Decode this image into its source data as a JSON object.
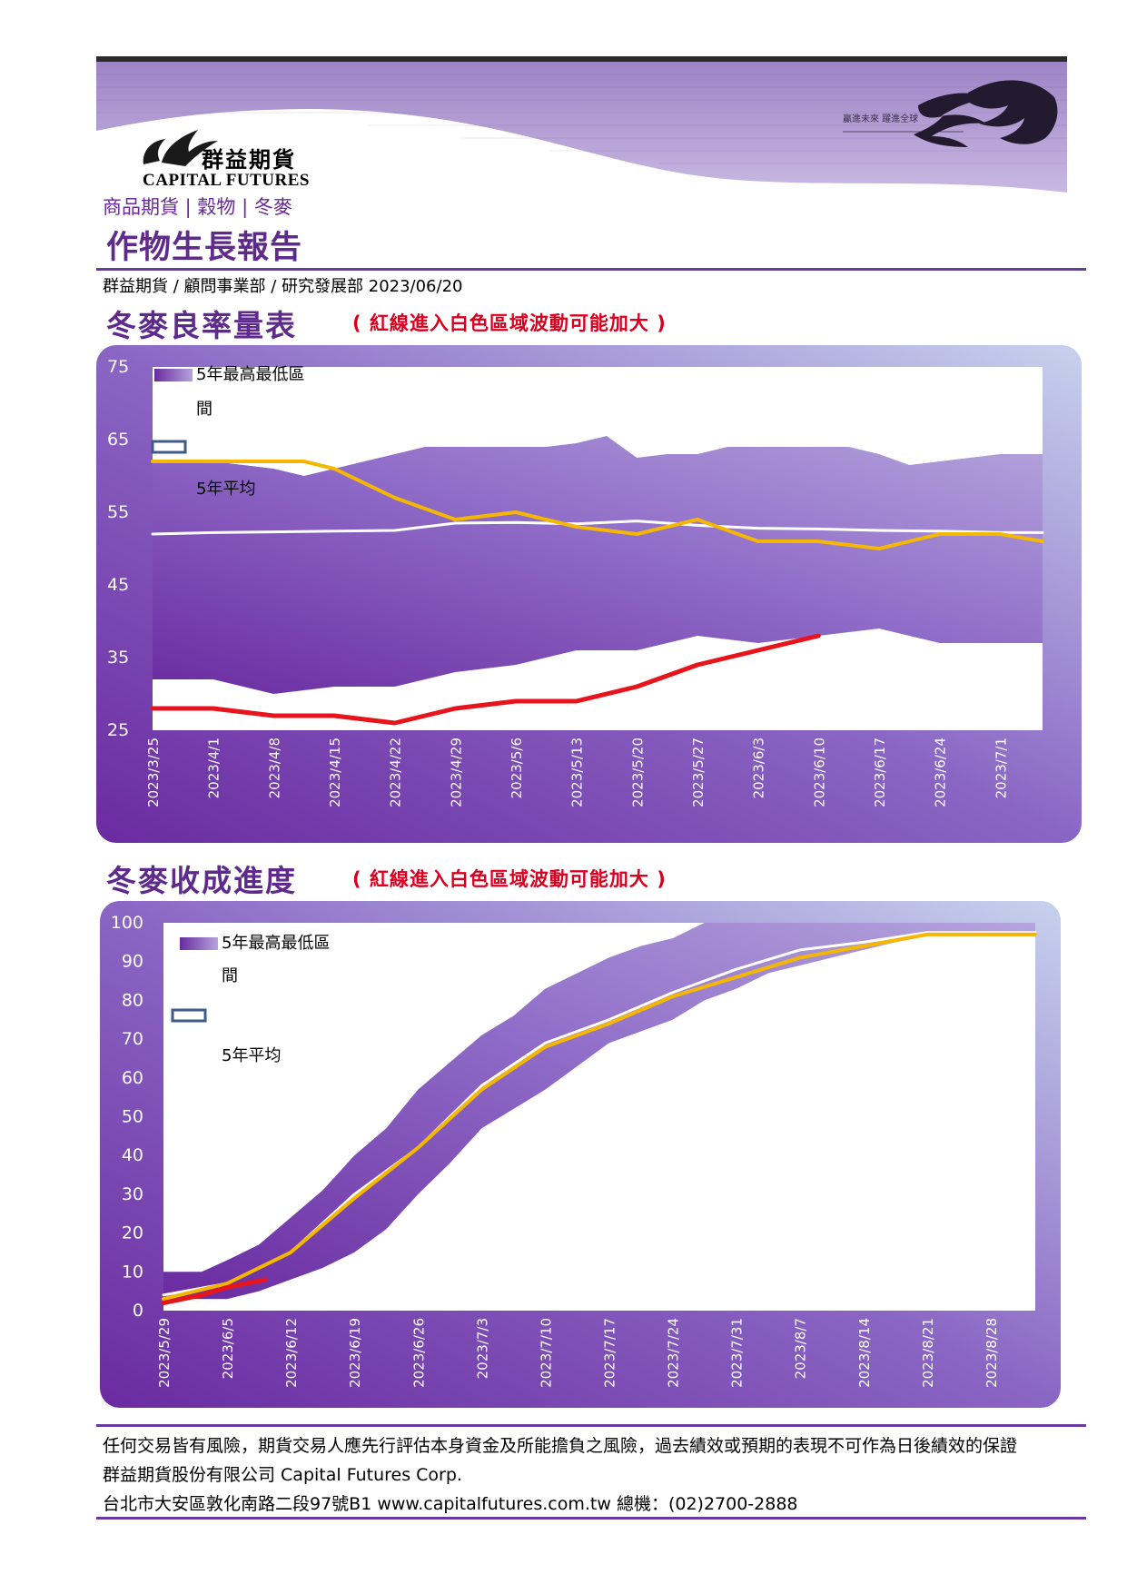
{
  "header": {
    "logo_cn": "群益期貨",
    "logo_en": "CAPITAL FUTURES",
    "banner_slogan_line1": "贏進未來 躍進全球",
    "category": "商品期貨 | 穀物 | 冬麥",
    "title": "作物生長報告",
    "byline": "群益期貨 / 顧問事業部 / 研究發展部   2023/06/20"
  },
  "colors": {
    "brand_purple": "#5e2a8c",
    "band_purple": "#8a66c4",
    "avg_line": "#ffffff",
    "yellow_line": "#f5b800",
    "red_line": "#e8141c",
    "note_red": "#d8001e"
  },
  "sections": [
    {
      "title": "冬麥良率量表",
      "note": "( 紅線進入白色區域波動可能加大 )"
    },
    {
      "title": "冬麥收成進度",
      "note": "( 紅線進入白色區域波動可能加大 )"
    }
  ],
  "chart_data": [
    {
      "type": "area",
      "legend": [
        "5年最高最低區間",
        "5年平均"
      ],
      "ylim": [
        25,
        75
      ],
      "yticks": [
        25,
        35,
        45,
        55,
        65,
        75
      ],
      "x_labels": [
        "2023/3/25",
        "2023/4/1",
        "2023/4/8",
        "2023/4/15",
        "2023/4/22",
        "2023/4/29",
        "2023/5/6",
        "2023/5/13",
        "2023/5/20",
        "2023/5/27",
        "2023/6/3",
        "2023/6/10",
        "2023/6/17",
        "2023/6/24",
        "2023/7/1"
      ],
      "x_weeks": [
        0,
        0.7,
        1,
        1.5,
        2,
        2.5,
        3,
        3.5,
        4,
        4.5,
        5,
        5.5,
        6,
        6.5,
        7,
        7.5,
        8,
        8.5,
        9,
        9.5,
        10,
        10.5,
        11,
        11.5,
        12,
        12.5,
        13,
        13.5,
        14,
        14.7
      ],
      "band_high": [
        62,
        62,
        62,
        61.5,
        61,
        60,
        61,
        62,
        63,
        64,
        64,
        64,
        64,
        64,
        64.5,
        65.5,
        62.5,
        63,
        63,
        64,
        64,
        64,
        64,
        64,
        63,
        61.5,
        62,
        62.5,
        63,
        63
      ],
      "band_low": [
        32,
        32,
        32,
        31,
        30,
        30.5,
        31,
        31,
        31,
        32,
        33,
        33.5,
        34,
        35,
        36,
        36,
        36,
        37,
        38,
        37.5,
        37,
        37.5,
        38,
        38.5,
        39,
        38,
        37,
        37,
        37,
        37
      ],
      "series": [
        {
          "name": "5年平均",
          "color": "#ffffff",
          "x": [
            0,
            1,
            2,
            3,
            4,
            5,
            6,
            7,
            8,
            9,
            10,
            11,
            12,
            13,
            14,
            14.7
          ],
          "values": [
            52,
            52.2,
            52.3,
            52.4,
            52.5,
            53.5,
            53.6,
            53.4,
            53.8,
            53.2,
            52.8,
            52.7,
            52.5,
            52.4,
            52.2,
            52.2
          ]
        },
        {
          "x": [
            0,
            1,
            2,
            2.5,
            3,
            4,
            5,
            6,
            7,
            8,
            9,
            10,
            11,
            12,
            13,
            14,
            14.7
          ],
          "values": [
            62,
            62,
            62,
            62,
            61,
            57,
            54,
            55,
            53,
            52,
            54,
            51,
            51,
            50,
            52,
            52,
            51
          ]
        },
        {
          "x": [
            0,
            1,
            2,
            3,
            4,
            5,
            6,
            7,
            8,
            9,
            10,
            11
          ],
          "values": [
            28,
            28,
            27,
            27,
            26,
            28,
            29,
            29,
            31,
            34,
            36,
            38
          ]
        }
      ]
    },
    {
      "type": "area",
      "legend": [
        "5年最高最低區間",
        "5年平均"
      ],
      "ylim": [
        0,
        100
      ],
      "yticks": [
        0,
        10,
        20,
        30,
        40,
        50,
        60,
        70,
        80,
        90,
        100
      ],
      "x_labels": [
        "2023/5/29",
        "2023/6/5",
        "2023/6/12",
        "2023/6/19",
        "2023/6/26",
        "2023/7/3",
        "2023/7/10",
        "2023/7/17",
        "2023/7/24",
        "2023/7/31",
        "2023/8/7",
        "2023/8/14",
        "2023/8/21",
        "2023/8/28"
      ],
      "x_weeks": [
        0,
        0.6,
        1,
        1.5,
        2,
        2.5,
        3,
        3.5,
        4,
        4.5,
        5,
        5.5,
        6,
        6.5,
        7,
        7.5,
        8,
        8.5,
        9,
        9.5,
        10,
        10.5,
        11,
        11.5,
        12,
        12.5,
        13,
        13.5,
        13.7
      ],
      "band_high": [
        10,
        10,
        13,
        17,
        24,
        31,
        40,
        47,
        57,
        64,
        71,
        76,
        83,
        87,
        91,
        94,
        96,
        100,
        100,
        100,
        100,
        100,
        100,
        100,
        100,
        100,
        100,
        100,
        100
      ],
      "band_low": [
        3,
        3,
        3,
        5,
        8,
        11,
        15,
        21,
        30,
        38,
        47,
        52,
        57,
        63,
        69,
        72,
        75,
        80,
        83,
        87,
        89,
        91,
        93,
        95,
        96.5,
        96.5,
        96.5,
        96.5,
        96.5
      ],
      "series": [
        {
          "name": "5年平均",
          "color": "#ffffff",
          "x": [
            0,
            1,
            2,
            3,
            4,
            5,
            6,
            7,
            8,
            9,
            10,
            11,
            12,
            13,
            13.7
          ],
          "values": [
            4,
            7,
            15,
            30,
            42,
            58,
            69,
            75,
            82,
            88,
            93,
            95,
            97.5,
            97.5,
            97.5
          ]
        },
        {
          "x": [
            0,
            1,
            2,
            3,
            4,
            5,
            6,
            7,
            8,
            9,
            10,
            11,
            12,
            13,
            13.7
          ],
          "values": [
            3,
            7,
            15,
            29,
            42,
            57,
            68,
            74,
            81,
            86,
            91,
            94,
            97,
            97,
            97
          ]
        },
        {
          "x": [
            0,
            0.6,
            1,
            1.6
          ],
          "values": [
            2,
            4,
            6,
            8
          ]
        }
      ]
    }
  ],
  "footer": {
    "disclaimer": "任何交易皆有風險，期貨交易人應先行評估本身資金及所能擔負之風險，過去績效或預期的表現不可作為日後績效的保證",
    "company": "群益期貨股份有限公司 Capital Futures Corp.",
    "address": "台北市大安區敦化南路二段97號B1   www.capitalfutures.com.tw 總機：(02)2700-2888"
  }
}
